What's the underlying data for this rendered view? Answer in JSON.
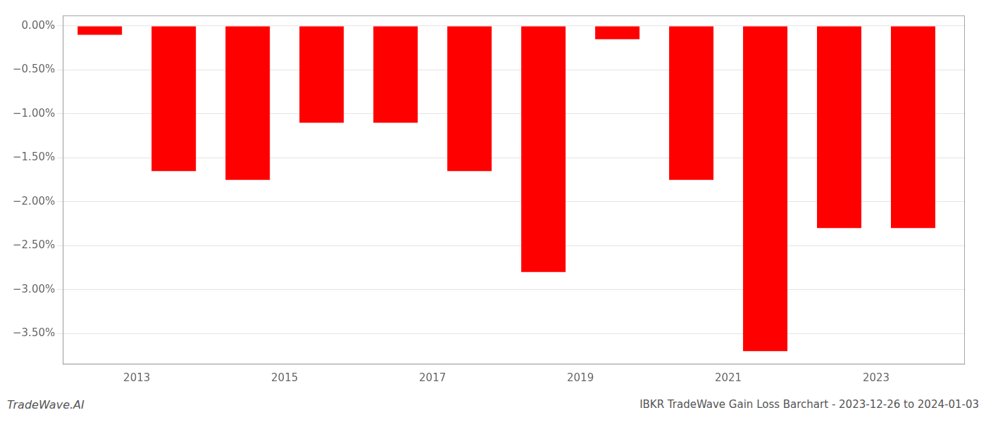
{
  "chart_data": {
    "type": "bar",
    "x": [
      2012.5,
      2013.5,
      2014.5,
      2015.5,
      2016.5,
      2017.5,
      2018.5,
      2019.5,
      2020.5,
      2021.5,
      2022.5,
      2023.5
    ],
    "values": [
      -0.1,
      -1.65,
      -1.75,
      -1.1,
      -1.1,
      -1.65,
      -2.8,
      -0.15,
      -1.75,
      -3.7,
      -2.3,
      -2.3
    ],
    "color": "#ff0000",
    "xlim": [
      2012.0,
      2024.2
    ],
    "xticks": [
      2013,
      2015,
      2017,
      2019,
      2021,
      2023
    ],
    "ylim": [
      -3.85,
      0.12
    ],
    "yticks": [
      {
        "value": 0.0,
        "label": "0.00%"
      },
      {
        "value": -0.5,
        "label": "−0.50%"
      },
      {
        "value": -1.0,
        "label": "−1.00%"
      },
      {
        "value": -1.5,
        "label": "−1.50%"
      },
      {
        "value": -2.0,
        "label": "−2.00%"
      },
      {
        "value": -2.5,
        "label": "−2.50%"
      },
      {
        "value": -3.0,
        "label": "−3.00%"
      },
      {
        "value": -3.5,
        "label": "−3.50%"
      }
    ],
    "grid": true,
    "annotations": [
      "TradeWave.AI",
      "IBKR TradeWave Gain Loss Barchart - 2023-12-26 to 2024-01-03"
    ]
  }
}
